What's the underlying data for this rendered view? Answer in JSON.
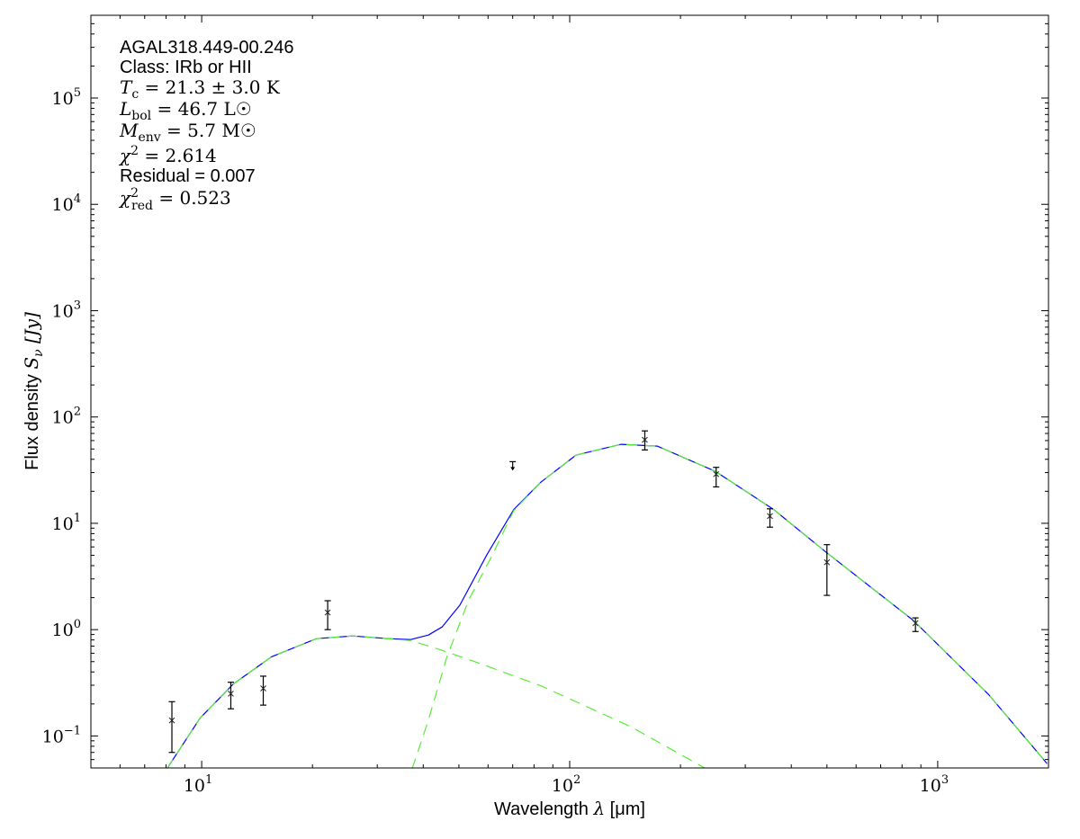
{
  "chart_data": {
    "type": "scatter",
    "title": "",
    "xlabel": {
      "text": "Wavelength ",
      "sym": "λ",
      "unit": " [μm]"
    },
    "ylabel": {
      "text": "Flux density ",
      "sym": "S",
      "sub": "ν",
      "unit": " [Jy]"
    },
    "xscale": "log",
    "yscale": "log",
    "xlim": [
      5,
      2000
    ],
    "ylim": [
      0.05,
      600000
    ],
    "grid": false,
    "xticks": [
      {
        "value": 10,
        "base": "10",
        "exp": "1"
      },
      {
        "value": 100,
        "base": "10",
        "exp": "2"
      },
      {
        "value": 1000,
        "base": "10",
        "exp": "3"
      }
    ],
    "yticks": [
      {
        "value": 0.1,
        "base": "10",
        "exp": "−1"
      },
      {
        "value": 1,
        "base": "10",
        "exp": "0"
      },
      {
        "value": 10,
        "base": "10",
        "exp": "1"
      },
      {
        "value": 100,
        "base": "10",
        "exp": "2"
      },
      {
        "value": 1000,
        "base": "10",
        "exp": "3"
      },
      {
        "value": 10000,
        "base": "10",
        "exp": "4"
      },
      {
        "value": 100000,
        "base": "10",
        "exp": "5"
      }
    ],
    "annotations": [
      {
        "kind": "text",
        "text": "AGAL318.449-00.246"
      },
      {
        "kind": "text",
        "text": "Class: IRb or HII"
      },
      {
        "kind": "math",
        "sym": "T",
        "sub": "c",
        "sup": "",
        "rest": " = 21.3 ± 3.0 K"
      },
      {
        "kind": "math",
        "sym": "L",
        "sub": "bol",
        "sup": "",
        "rest": " = 46.7 L☉"
      },
      {
        "kind": "math",
        "sym": "M",
        "sub": "env",
        "sup": "",
        "rest": " = 5.7 M☉"
      },
      {
        "kind": "math",
        "sym": "χ",
        "sub": "",
        "sup": "2",
        "rest": " = 2.614"
      },
      {
        "kind": "text",
        "text": "Residual = 0.007"
      },
      {
        "kind": "math",
        "sym": "χ",
        "sub": "red",
        "sup": "2",
        "rest": " = 0.523"
      }
    ],
    "points": [
      {
        "x": 8.3,
        "y": 0.14,
        "lo": 0.07,
        "hi": 0.21
      },
      {
        "x": 12,
        "y": 0.25,
        "lo": 0.18,
        "hi": 0.32
      },
      {
        "x": 14.7,
        "y": 0.28,
        "lo": 0.195,
        "hi": 0.365
      },
      {
        "x": 22,
        "y": 1.45,
        "lo": 1.0,
        "hi": 1.87
      },
      {
        "x": 160,
        "y": 61,
        "lo": 49,
        "hi": 74
      },
      {
        "x": 250,
        "y": 29,
        "lo": 22,
        "hi": 33.6
      },
      {
        "x": 350,
        "y": 11.7,
        "lo": 9.2,
        "hi": 13.7
      },
      {
        "x": 500,
        "y": 4.3,
        "lo": 2.1,
        "hi": 6.3
      },
      {
        "x": 870,
        "y": 1.15,
        "lo": 0.96,
        "hi": 1.29
      }
    ],
    "upper_limits": [
      {
        "x": 70,
        "y": 38
      }
    ],
    "series": [
      {
        "style": "solid",
        "color": "#0000ff",
        "x": [
          8.04,
          9.9,
          12.2,
          15.5,
          20.5,
          25.7,
          32.1,
          37.0,
          41.3,
          45.0,
          50.3,
          59.6,
          70.5,
          83.4,
          104,
          138,
          173,
          249,
          358,
          496,
          859,
          1377,
          1982
        ],
        "y": [
          0.049,
          0.147,
          0.309,
          0.556,
          0.822,
          0.872,
          0.822,
          0.806,
          0.889,
          1.06,
          1.7,
          5.08,
          13.5,
          24.3,
          43.8,
          55.3,
          53.2,
          30.8,
          13.5,
          5.39,
          1.22,
          0.244,
          0.055
        ]
      },
      {
        "style": "dashed",
        "color": "#55ee33",
        "x": [
          8.04,
          9.9,
          12.2,
          15.5,
          20.5,
          25.7,
          32.1,
          37.0,
          44.3,
          53.2,
          83.4,
          146,
          235
        ],
        "y": [
          0.049,
          0.147,
          0.309,
          0.556,
          0.822,
          0.872,
          0.82,
          0.79,
          0.65,
          0.524,
          0.297,
          0.123,
          0.049
        ]
      },
      {
        "style": "dashed",
        "color": "#55ee33",
        "x": [
          37.3,
          41.3,
          46.3,
          53.2,
          61.2,
          70.5,
          83.4,
          104,
          138,
          173,
          249,
          358,
          496,
          859,
          1377,
          1982
        ],
        "y": [
          0.049,
          0.141,
          0.545,
          1.91,
          4.79,
          13.2,
          24.3,
          43.8,
          55.3,
          53.2,
          30.8,
          13.5,
          5.39,
          1.22,
          0.244,
          0.055
        ]
      }
    ]
  }
}
